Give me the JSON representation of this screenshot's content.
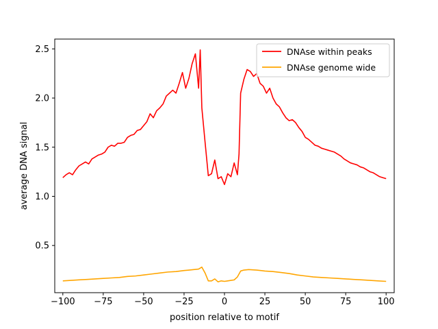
{
  "chart_data": {
    "type": "line",
    "title": "",
    "xlabel": "position relative to motif",
    "ylabel": "average DNA signal",
    "xlim": [
      -105,
      105
    ],
    "ylim": [
      0.02,
      2.6
    ],
    "xticks": [
      -100,
      -75,
      -50,
      -25,
      0,
      25,
      50,
      75,
      100
    ],
    "xtick_labels": [
      "−100",
      "−75",
      "−50",
      "−25",
      "0",
      "25",
      "50",
      "75",
      "100"
    ],
    "yticks": [
      0.5,
      1.0,
      1.5,
      2.0,
      2.5
    ],
    "ytick_labels": [
      "0.5",
      "1.0",
      "1.5",
      "2.0",
      "2.5"
    ],
    "grid": false,
    "legend_position": "top-right",
    "series": [
      {
        "name": "DNAse within peaks",
        "color": "#ff0000",
        "x": [
          -100,
          -98,
          -96,
          -94,
          -92,
          -90,
          -88,
          -86,
          -84,
          -82,
          -80,
          -78,
          -76,
          -74,
          -72,
          -70,
          -68,
          -66,
          -64,
          -62,
          -60,
          -58,
          -56,
          -54,
          -52,
          -50,
          -48,
          -46,
          -44,
          -42,
          -40,
          -38,
          -36,
          -34,
          -32,
          -30,
          -28,
          -26,
          -24,
          -22,
          -20,
          -18,
          -16,
          -15,
          -14,
          -12,
          -10,
          -8,
          -6,
          -4,
          -2,
          0,
          2,
          4,
          6,
          8,
          9,
          10,
          12,
          14,
          16,
          18,
          20,
          22,
          24,
          26,
          28,
          30,
          32,
          34,
          36,
          38,
          40,
          42,
          44,
          46,
          48,
          50,
          52,
          54,
          56,
          58,
          60,
          62,
          64,
          66,
          68,
          70,
          72,
          74,
          76,
          78,
          80,
          82,
          84,
          86,
          88,
          90,
          92,
          94,
          96,
          98,
          100
        ],
        "values": [
          1.19,
          1.22,
          1.24,
          1.22,
          1.27,
          1.31,
          1.33,
          1.35,
          1.33,
          1.38,
          1.4,
          1.42,
          1.43,
          1.45,
          1.5,
          1.52,
          1.51,
          1.54,
          1.54,
          1.55,
          1.6,
          1.62,
          1.63,
          1.67,
          1.68,
          1.72,
          1.76,
          1.84,
          1.8,
          1.87,
          1.9,
          1.94,
          2.02,
          2.05,
          2.08,
          2.05,
          2.15,
          2.26,
          2.1,
          2.2,
          2.35,
          2.45,
          2.1,
          2.49,
          1.9,
          1.55,
          1.21,
          1.23,
          1.37,
          1.18,
          1.2,
          1.12,
          1.23,
          1.2,
          1.34,
          1.22,
          1.43,
          2.05,
          2.19,
          2.29,
          2.27,
          2.22,
          2.25,
          2.15,
          2.12,
          2.05,
          2.1,
          2.0,
          1.94,
          1.91,
          1.85,
          1.8,
          1.77,
          1.78,
          1.75,
          1.7,
          1.66,
          1.6,
          1.58,
          1.55,
          1.52,
          1.51,
          1.49,
          1.48,
          1.47,
          1.46,
          1.45,
          1.43,
          1.41,
          1.38,
          1.36,
          1.34,
          1.33,
          1.32,
          1.3,
          1.29,
          1.27,
          1.25,
          1.24,
          1.22,
          1.2,
          1.19,
          1.18
        ]
      },
      {
        "name": "DNAse genome wide",
        "color": "#ffa500",
        "x": [
          -100,
          -95,
          -90,
          -85,
          -80,
          -75,
          -70,
          -65,
          -60,
          -55,
          -50,
          -45,
          -40,
          -35,
          -30,
          -25,
          -22,
          -19,
          -16,
          -14,
          -12,
          -10,
          -8,
          -6,
          -4,
          -2,
          0,
          2,
          4,
          6,
          8,
          10,
          12,
          15,
          20,
          25,
          30,
          35,
          40,
          45,
          50,
          55,
          60,
          65,
          70,
          75,
          80,
          85,
          90,
          95,
          100
        ],
        "values": [
          0.14,
          0.145,
          0.15,
          0.155,
          0.16,
          0.165,
          0.17,
          0.175,
          0.185,
          0.19,
          0.2,
          0.21,
          0.22,
          0.23,
          0.235,
          0.245,
          0.25,
          0.255,
          0.26,
          0.28,
          0.22,
          0.14,
          0.14,
          0.16,
          0.13,
          0.14,
          0.135,
          0.14,
          0.145,
          0.15,
          0.18,
          0.24,
          0.25,
          0.255,
          0.25,
          0.24,
          0.235,
          0.225,
          0.215,
          0.2,
          0.19,
          0.18,
          0.175,
          0.17,
          0.165,
          0.16,
          0.155,
          0.15,
          0.145,
          0.14,
          0.135
        ]
      }
    ]
  }
}
